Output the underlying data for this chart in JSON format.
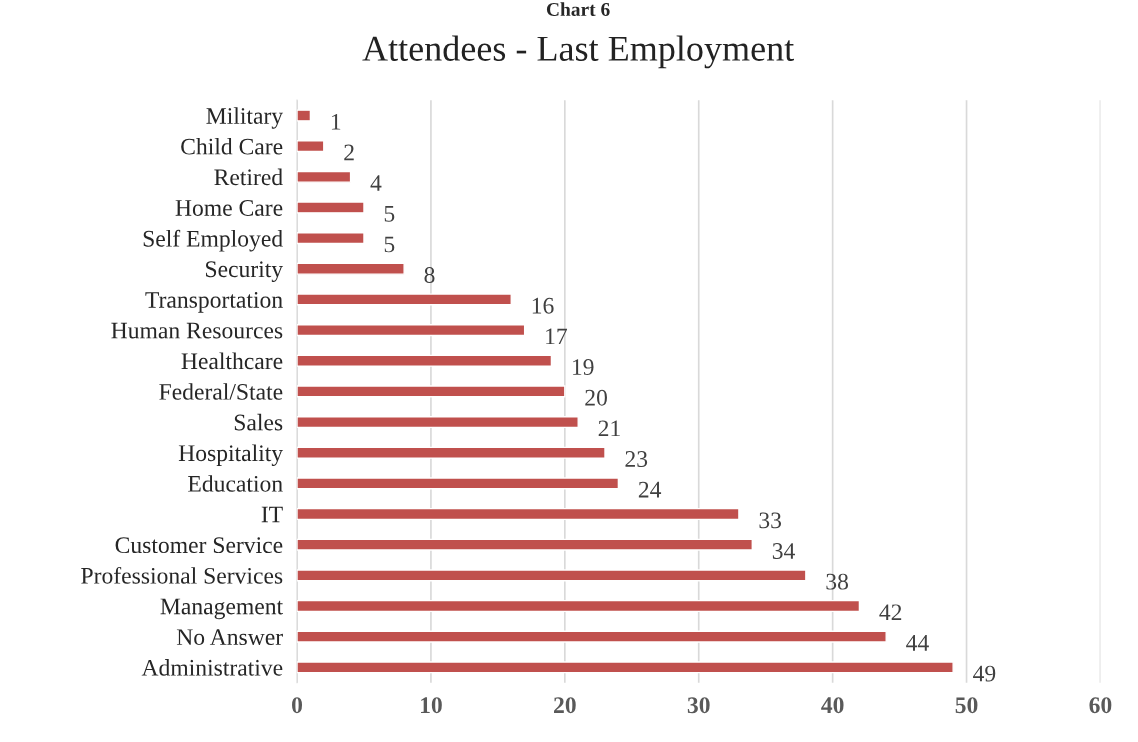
{
  "chart_data": {
    "type": "bar",
    "orientation": "horizontal",
    "title": "Attendees - Last Employment",
    "annotations": [
      "Chart 6"
    ],
    "categories": [
      "Military",
      "Child Care",
      "Retired",
      "Home Care",
      "Self Employed",
      "Security",
      "Transportation",
      "Human Resources",
      "Healthcare",
      "Federal/State",
      "Sales",
      "Hospitality",
      "Education",
      "IT",
      "Customer Service",
      "Professional Services",
      "Management",
      "No Answer",
      "Administrative"
    ],
    "values": [
      1,
      2,
      4,
      5,
      5,
      8,
      16,
      17,
      19,
      20,
      21,
      23,
      24,
      33,
      34,
      38,
      42,
      44,
      49
    ],
    "color": "#c0504d",
    "xlim": [
      0,
      60
    ],
    "xticks": [
      0,
      10,
      20,
      30,
      40,
      50,
      60
    ],
    "grid": "x",
    "data_labels": true,
    "legend": false
  }
}
